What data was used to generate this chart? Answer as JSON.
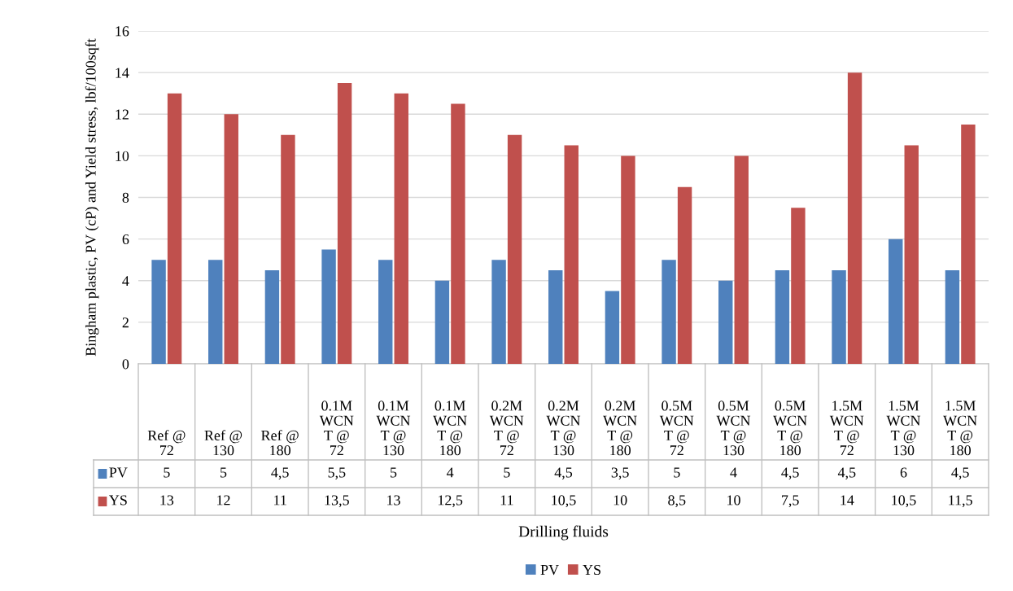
{
  "chart_data": {
    "type": "bar",
    "xlabel": "Drilling fluids",
    "ylabel": "Bingham plastic, PV (cP) and Yield stress, lbf/100sqft",
    "categories": [
      "Ref @\n72",
      "Ref @\n130",
      "Ref @\n180",
      "0.1M\nWCN\nT @\n72",
      "0.1M\nWCN\nT @\n130",
      "0.1M\nWCN\nT @\n180",
      "0.2M\nWCN\nT @\n72",
      "0.2M\nWCN\nT @\n130",
      "0.2M\nWCN\nT @\n180",
      "0.5M\nWCN\nT @\n72",
      "0.5M\nWCN\nT @\n130",
      "0.5M\nWCN\nT @\n180",
      "1.5M\nWCN\nT @\n72",
      "1.5M\nWCN\nT @\n130",
      "1.5M\nWCN\nT @\n180"
    ],
    "series": [
      {
        "name": "PV",
        "color": "#4f81bd",
        "values": [
          5,
          5,
          4.5,
          5.5,
          5,
          4,
          5,
          4.5,
          3.5,
          5,
          4,
          4.5,
          4.5,
          6,
          4.5
        ],
        "value_labels": [
          "5",
          "5",
          "4,5",
          "5,5",
          "5",
          "4",
          "5",
          "4,5",
          "3,5",
          "5",
          "4",
          "4,5",
          "4,5",
          "6",
          "4,5"
        ]
      },
      {
        "name": "YS",
        "color": "#c0504d",
        "values": [
          13,
          12,
          11,
          13.5,
          13,
          12.5,
          11,
          10.5,
          10,
          8.5,
          10,
          7.5,
          14,
          10.5,
          11.5
        ],
        "value_labels": [
          "13",
          "12",
          "11",
          "13,5",
          "13",
          "12,5",
          "11",
          "10,5",
          "10",
          "8,5",
          "10",
          "7,5",
          "14",
          "10,5",
          "11,5"
        ]
      }
    ],
    "ylim": [
      0,
      16
    ],
    "yticks": [
      0,
      2,
      4,
      6,
      8,
      10,
      12,
      14,
      16
    ],
    "grid": "y",
    "legend": "bottom"
  }
}
